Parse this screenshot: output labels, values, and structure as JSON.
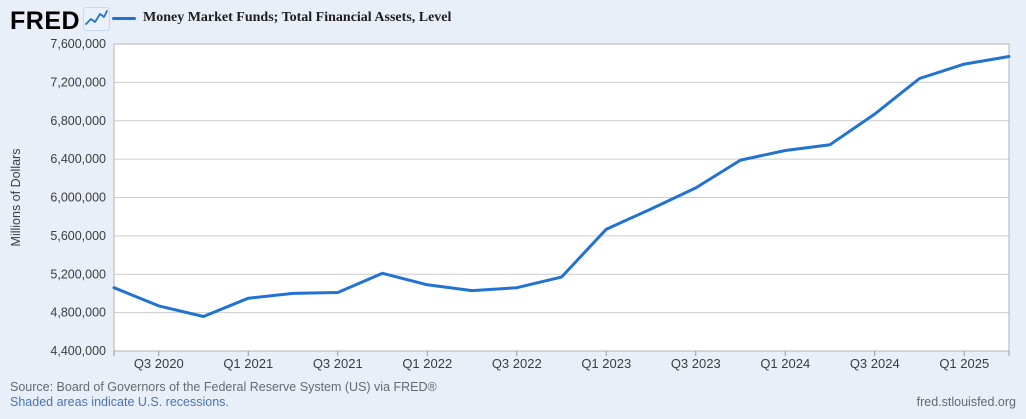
{
  "header": {
    "logo_text": "FRED"
  },
  "legend": {
    "label": "Money Market Funds; Total Financial Assets, Level"
  },
  "footer": {
    "source": "Source: Board of Governors of the Federal Reserve System (US) via FRED®",
    "note": "Shaded areas indicate U.S. recessions.",
    "site": "fred.stlouisfed.org"
  },
  "colors": {
    "line": "#2272d2",
    "link": "#4a74b5",
    "page_bg": "#e9eff9",
    "plot_bg": "#ffffff",
    "grid": "#cccccc",
    "plot_border": "#b3b3b3",
    "axis_text": "#3c3c3c",
    "tick": "#999999"
  },
  "chart_data": {
    "type": "line",
    "title": "Money Market Funds; Total Financial Assets, Level",
    "xlabel": "",
    "ylabel": "Millions of Dollars",
    "ylim": [
      4400000,
      7600000
    ],
    "y_tick_step": 400000,
    "y_tick_labels": [
      "4,400,000",
      "4,800,000",
      "5,200,000",
      "5,600,000",
      "6,000,000",
      "6,400,000",
      "6,800,000",
      "7,200,000",
      "7,600,000"
    ],
    "grid": true,
    "legend_position": "top-left",
    "x": [
      "Q2 2020",
      "Q3 2020",
      "Q4 2020",
      "Q1 2021",
      "Q2 2021",
      "Q3 2021",
      "Q4 2021",
      "Q1 2022",
      "Q2 2022",
      "Q3 2022",
      "Q4 2022",
      "Q1 2023",
      "Q2 2023",
      "Q3 2023",
      "Q4 2023",
      "Q1 2024",
      "Q2 2024",
      "Q3 2024",
      "Q4 2024",
      "Q1 2025",
      "Q2 2025"
    ],
    "values": [
      5060000,
      4870000,
      4760000,
      4950000,
      5000000,
      5010000,
      5210000,
      5090000,
      5030000,
      5060000,
      5170000,
      5670000,
      5880000,
      6100000,
      6390000,
      6490000,
      6550000,
      6870000,
      7240000,
      7390000,
      7470000
    ],
    "x_tick_labels": [
      {
        "label": "Q3 2020",
        "index": 1
      },
      {
        "label": "Q1 2021",
        "index": 3
      },
      {
        "label": "Q3 2021",
        "index": 5
      },
      {
        "label": "Q1 2022",
        "index": 7
      },
      {
        "label": "Q3 2022",
        "index": 9
      },
      {
        "label": "Q1 2023",
        "index": 11
      },
      {
        "label": "Q3 2023",
        "index": 13
      },
      {
        "label": "Q1 2024",
        "index": 15
      },
      {
        "label": "Q3 2024",
        "index": 17
      },
      {
        "label": "Q1 2025",
        "index": 19
      }
    ]
  }
}
